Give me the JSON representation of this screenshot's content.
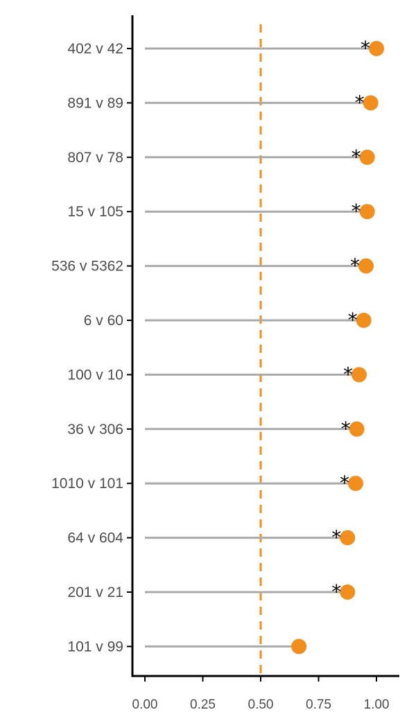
{
  "chart_data": {
    "type": "lollipop",
    "categories": [
      "402 v 42",
      "891 v 89",
      "807 v 78",
      "15 v 105",
      "536 v 5362",
      "6 v 60",
      "100 v 10",
      "36 v 306",
      "1010 v 101",
      "64 v 604",
      "201 v 21",
      "101 v 99"
    ],
    "values": [
      1.0,
      0.975,
      0.96,
      0.96,
      0.955,
      0.945,
      0.925,
      0.915,
      0.91,
      0.875,
      0.875,
      0.665
    ],
    "significant": [
      true,
      true,
      true,
      true,
      true,
      true,
      true,
      true,
      true,
      true,
      true,
      false
    ],
    "significance_marker": "*",
    "reference_line": 0.5,
    "xlim": [
      -0.05,
      1.1
    ],
    "xticks": [
      0.0,
      0.25,
      0.5,
      0.75,
      1.0
    ],
    "xtick_labels": [
      "0.00",
      "0.25",
      "0.50",
      "0.75",
      "1.00"
    ],
    "colors": {
      "point": "#F28E1C",
      "stem": "#AAAAAA",
      "reference_line": "#F28E1C",
      "axis": "#000000",
      "text": "#4D4D4D"
    }
  }
}
